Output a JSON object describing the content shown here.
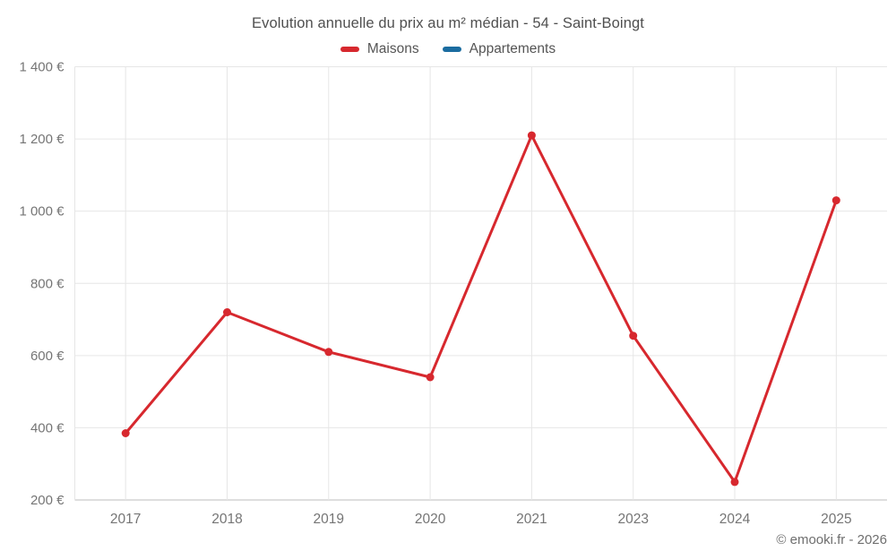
{
  "header": {
    "title": "Evolution annuelle du prix au m² médian - 54 - Saint-Boingt"
  },
  "footer": {
    "attribution": "© emooki.fr - 2026"
  },
  "colors": {
    "maisons": "#d7282e",
    "appartements": "#1b6ca0",
    "gridline": "#e6e6e6",
    "axis_line": "#bdbdbd",
    "tick_label": "#757575",
    "title_text": "#4f4f4f"
  },
  "chart_data": {
    "type": "line",
    "title": "Evolution annuelle du prix au m² médian - 54 - Saint-Boingt",
    "categories": [
      "2017",
      "2018",
      "2019",
      "2020",
      "2021",
      "2023",
      "2024",
      "2025"
    ],
    "series": [
      {
        "name": "Maisons",
        "color": "#d7282e",
        "values": [
          385,
          720,
          610,
          540,
          1210,
          655,
          250,
          1030
        ]
      },
      {
        "name": "Appartements",
        "color": "#1b6ca0",
        "values": []
      }
    ],
    "xlabel": "",
    "ylabel": "",
    "ylim": [
      200,
      1400
    ],
    "yticks": [
      200,
      400,
      600,
      800,
      1000,
      1200,
      1400
    ],
    "ytick_labels": [
      "200 €",
      "400 €",
      "600 €",
      "800 €",
      "1 000 €",
      "1 200 €",
      "1 400 €"
    ],
    "currency_suffix": "€",
    "grid": true,
    "legend_position": "top"
  }
}
